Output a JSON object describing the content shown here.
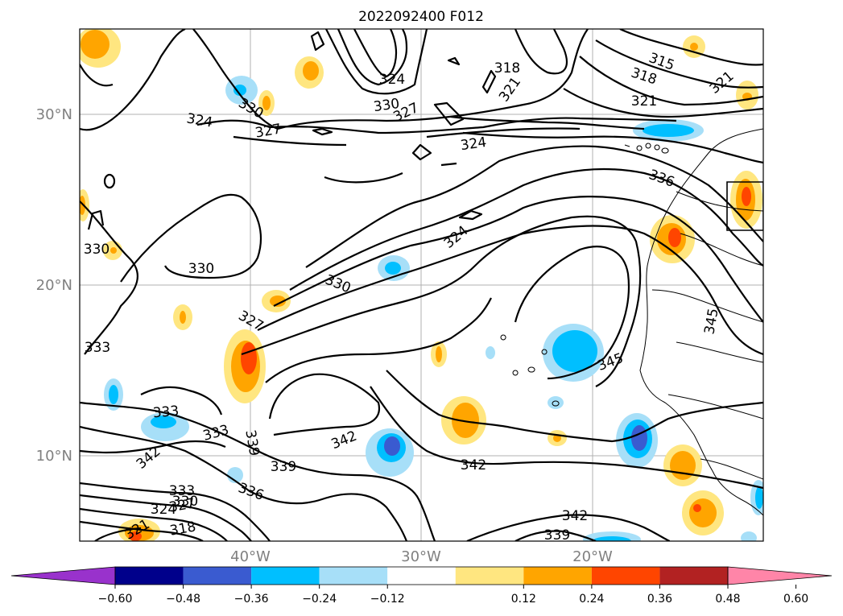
{
  "title": "2022092400 F012",
  "map": {
    "lat_labels": [
      "30°N",
      "20°N",
      "10°N"
    ],
    "lon_labels": [
      "40°W",
      "30°W",
      "20°W"
    ],
    "contour_labels": [
      {
        "text": "318"
      },
      {
        "text": "315"
      },
      {
        "text": "318"
      },
      {
        "text": "321"
      },
      {
        "text": "321"
      },
      {
        "text": "321"
      },
      {
        "text": "324"
      },
      {
        "text": "330"
      },
      {
        "text": "327"
      },
      {
        "text": "324"
      },
      {
        "text": "330"
      },
      {
        "text": "327"
      },
      {
        "text": "324"
      },
      {
        "text": "336"
      },
      {
        "text": "324"
      },
      {
        "text": "330"
      },
      {
        "text": "330"
      },
      {
        "text": "330"
      },
      {
        "text": "327"
      },
      {
        "text": "333"
      },
      {
        "text": "345"
      },
      {
        "text": "345"
      },
      {
        "text": "333"
      },
      {
        "text": "333"
      },
      {
        "text": "342"
      },
      {
        "text": "339"
      },
      {
        "text": "342"
      },
      {
        "text": "339"
      },
      {
        "text": "342"
      },
      {
        "text": "336"
      },
      {
        "text": "333"
      },
      {
        "text": "330"
      },
      {
        "text": "327"
      },
      {
        "text": "324"
      },
      {
        "text": "321"
      },
      {
        "text": "318"
      },
      {
        "text": "342"
      },
      {
        "text": "339"
      }
    ]
  },
  "colorbar": {
    "colors": [
      "#9932cc",
      "#00008b",
      "#3a5bd0",
      "#00bfff",
      "#a7dff8",
      "#ffffff",
      "#ffe680",
      "#ffa500",
      "#ff4500",
      "#b22222",
      "#ff85a8"
    ],
    "ticks": [
      "−0.60",
      "−0.48",
      "−0.36",
      "−0.24",
      "−0.12",
      "0.12",
      "0.24",
      "0.36",
      "0.48",
      "0.60"
    ]
  }
}
